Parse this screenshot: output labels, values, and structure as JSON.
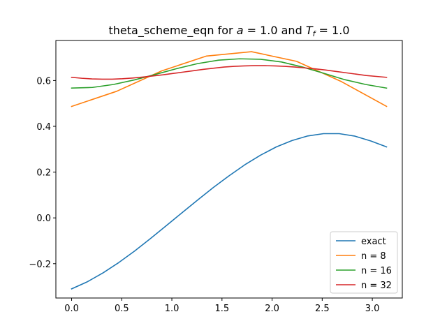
{
  "chart_data": {
    "type": "line",
    "title": "theta_scheme_eqn for a = 1.0 and T_f = 1.0",
    "title_parts": {
      "prefix": "theta_scheme_eqn for ",
      "var_a": "a",
      "eq_a": " = 1.0 and ",
      "var_T": "T",
      "sub_T": "f",
      "eq_T": " = 1.0"
    },
    "xlabel": "",
    "ylabel": "",
    "xlim": [
      -0.157,
      3.299
    ],
    "ylim": [
      -0.35,
      0.775
    ],
    "xticks": [
      0.0,
      0.5,
      1.0,
      1.5,
      2.0,
      2.5,
      3.0
    ],
    "xtick_labels": [
      "0.0",
      "0.5",
      "1.0",
      "1.5",
      "2.0",
      "2.5",
      "3.0"
    ],
    "yticks": [
      -0.2,
      0.0,
      0.2,
      0.4,
      0.6
    ],
    "ytick_labels": [
      "−0.2",
      "0.0",
      "0.2",
      "0.4",
      "0.6"
    ],
    "grid": false,
    "legend_position": "lower right",
    "series": [
      {
        "name": "exact",
        "color": "#1f77b4",
        "x": [
          0.0,
          0.157,
          0.314,
          0.471,
          0.628,
          0.785,
          0.942,
          1.1,
          1.257,
          1.414,
          1.571,
          1.728,
          1.885,
          2.042,
          2.199,
          2.356,
          2.513,
          2.67,
          2.827,
          2.985,
          3.142
        ],
        "y": [
          -0.31,
          -0.279,
          -0.24,
          -0.195,
          -0.145,
          -0.091,
          -0.035,
          0.022,
          0.078,
          0.133,
          0.184,
          0.232,
          0.274,
          0.31,
          0.338,
          0.358,
          0.368,
          0.368,
          0.357,
          0.336,
          0.31
        ]
      },
      {
        "name": "n = 8",
        "color": "#ff7f0e",
        "x": [
          0.0,
          0.449,
          0.898,
          1.346,
          1.795,
          2.244,
          2.693,
          3.142
        ],
        "y": [
          0.487,
          0.553,
          0.642,
          0.707,
          0.726,
          0.684,
          0.595,
          0.487
        ]
      },
      {
        "name": "n = 16",
        "color": "#2ca02c",
        "x": [
          0.0,
          0.209,
          0.419,
          0.628,
          0.838,
          1.047,
          1.257,
          1.466,
          1.676,
          1.885,
          2.094,
          2.304,
          2.513,
          2.723,
          2.932,
          3.142
        ],
        "y": [
          0.567,
          0.57,
          0.583,
          0.603,
          0.627,
          0.652,
          0.674,
          0.689,
          0.695,
          0.693,
          0.681,
          0.659,
          0.632,
          0.604,
          0.583,
          0.567
        ]
      },
      {
        "name": "n = 32",
        "color": "#d62728",
        "x": [
          0.0,
          0.101,
          0.203,
          0.304,
          0.405,
          0.507,
          0.608,
          0.709,
          0.811,
          0.912,
          1.013,
          1.115,
          1.216,
          1.317,
          1.419,
          1.52,
          1.621,
          1.723,
          1.824,
          1.925,
          2.027,
          2.128,
          2.229,
          2.331,
          2.432,
          2.533,
          2.635,
          2.736,
          2.837,
          2.939,
          3.04,
          3.142
        ],
        "y": [
          0.614,
          0.61,
          0.607,
          0.606,
          0.606,
          0.608,
          0.611,
          0.615,
          0.62,
          0.625,
          0.631,
          0.637,
          0.643,
          0.649,
          0.654,
          0.659,
          0.662,
          0.664,
          0.665,
          0.665,
          0.664,
          0.662,
          0.659,
          0.655,
          0.651,
          0.646,
          0.64,
          0.634,
          0.628,
          0.622,
          0.618,
          0.614
        ]
      }
    ]
  }
}
